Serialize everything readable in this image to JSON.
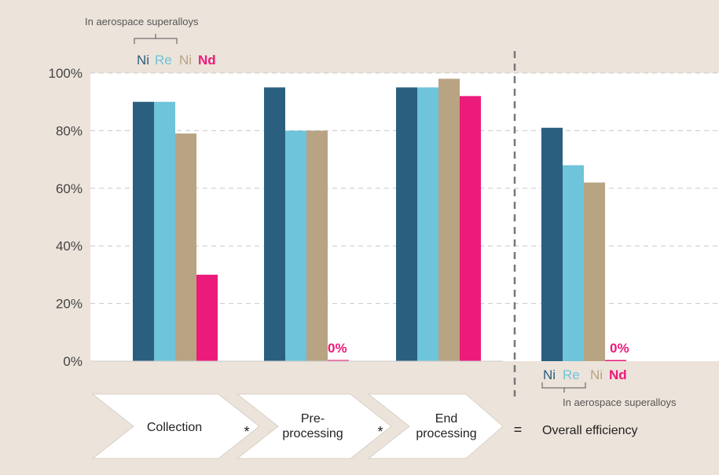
{
  "colors": {
    "background": "#ece3da",
    "plot_background": "#ffffff",
    "Ni_aerospace": "#2a5f80",
    "Re_aerospace": "#6ec4da",
    "Ni": "#b8a382",
    "Nd": "#ec1a7a",
    "divider": "#777777"
  },
  "chart_data": {
    "type": "bar",
    "ylim": [
      0,
      100
    ],
    "y_ticks": [
      "0%",
      "20%",
      "40%",
      "60%",
      "80%",
      "100%"
    ],
    "y_tick_values": [
      0,
      20,
      40,
      60,
      80,
      100
    ],
    "grid": true,
    "legend_note": "In aerospace superalloys",
    "legend_top": [
      "Ni",
      "Re",
      "Ni",
      "Nd"
    ],
    "legend_bottom": [
      "Ni",
      "Re",
      "Ni",
      "Nd"
    ],
    "groups": [
      {
        "values": [
          90,
          90,
          79,
          30
        ]
      },
      {
        "values": [
          95,
          80,
          80,
          0
        ],
        "zero_label": "0%"
      },
      {
        "values": [
          95,
          95,
          98,
          92
        ]
      },
      {
        "values": [
          81,
          68,
          62,
          0
        ],
        "zero_label": "0%"
      }
    ],
    "series_colors": [
      "#2a5f80",
      "#6ec4da",
      "#b8a382",
      "#ec1a7a"
    ]
  },
  "steps": {
    "collection": "Collection",
    "pre_line1": "Pre-",
    "pre_line2": "processing",
    "end_line1": "End",
    "end_line2": "processing",
    "op1": "*",
    "op2": "*",
    "equals": "=",
    "overall": "Overall efficiency"
  }
}
